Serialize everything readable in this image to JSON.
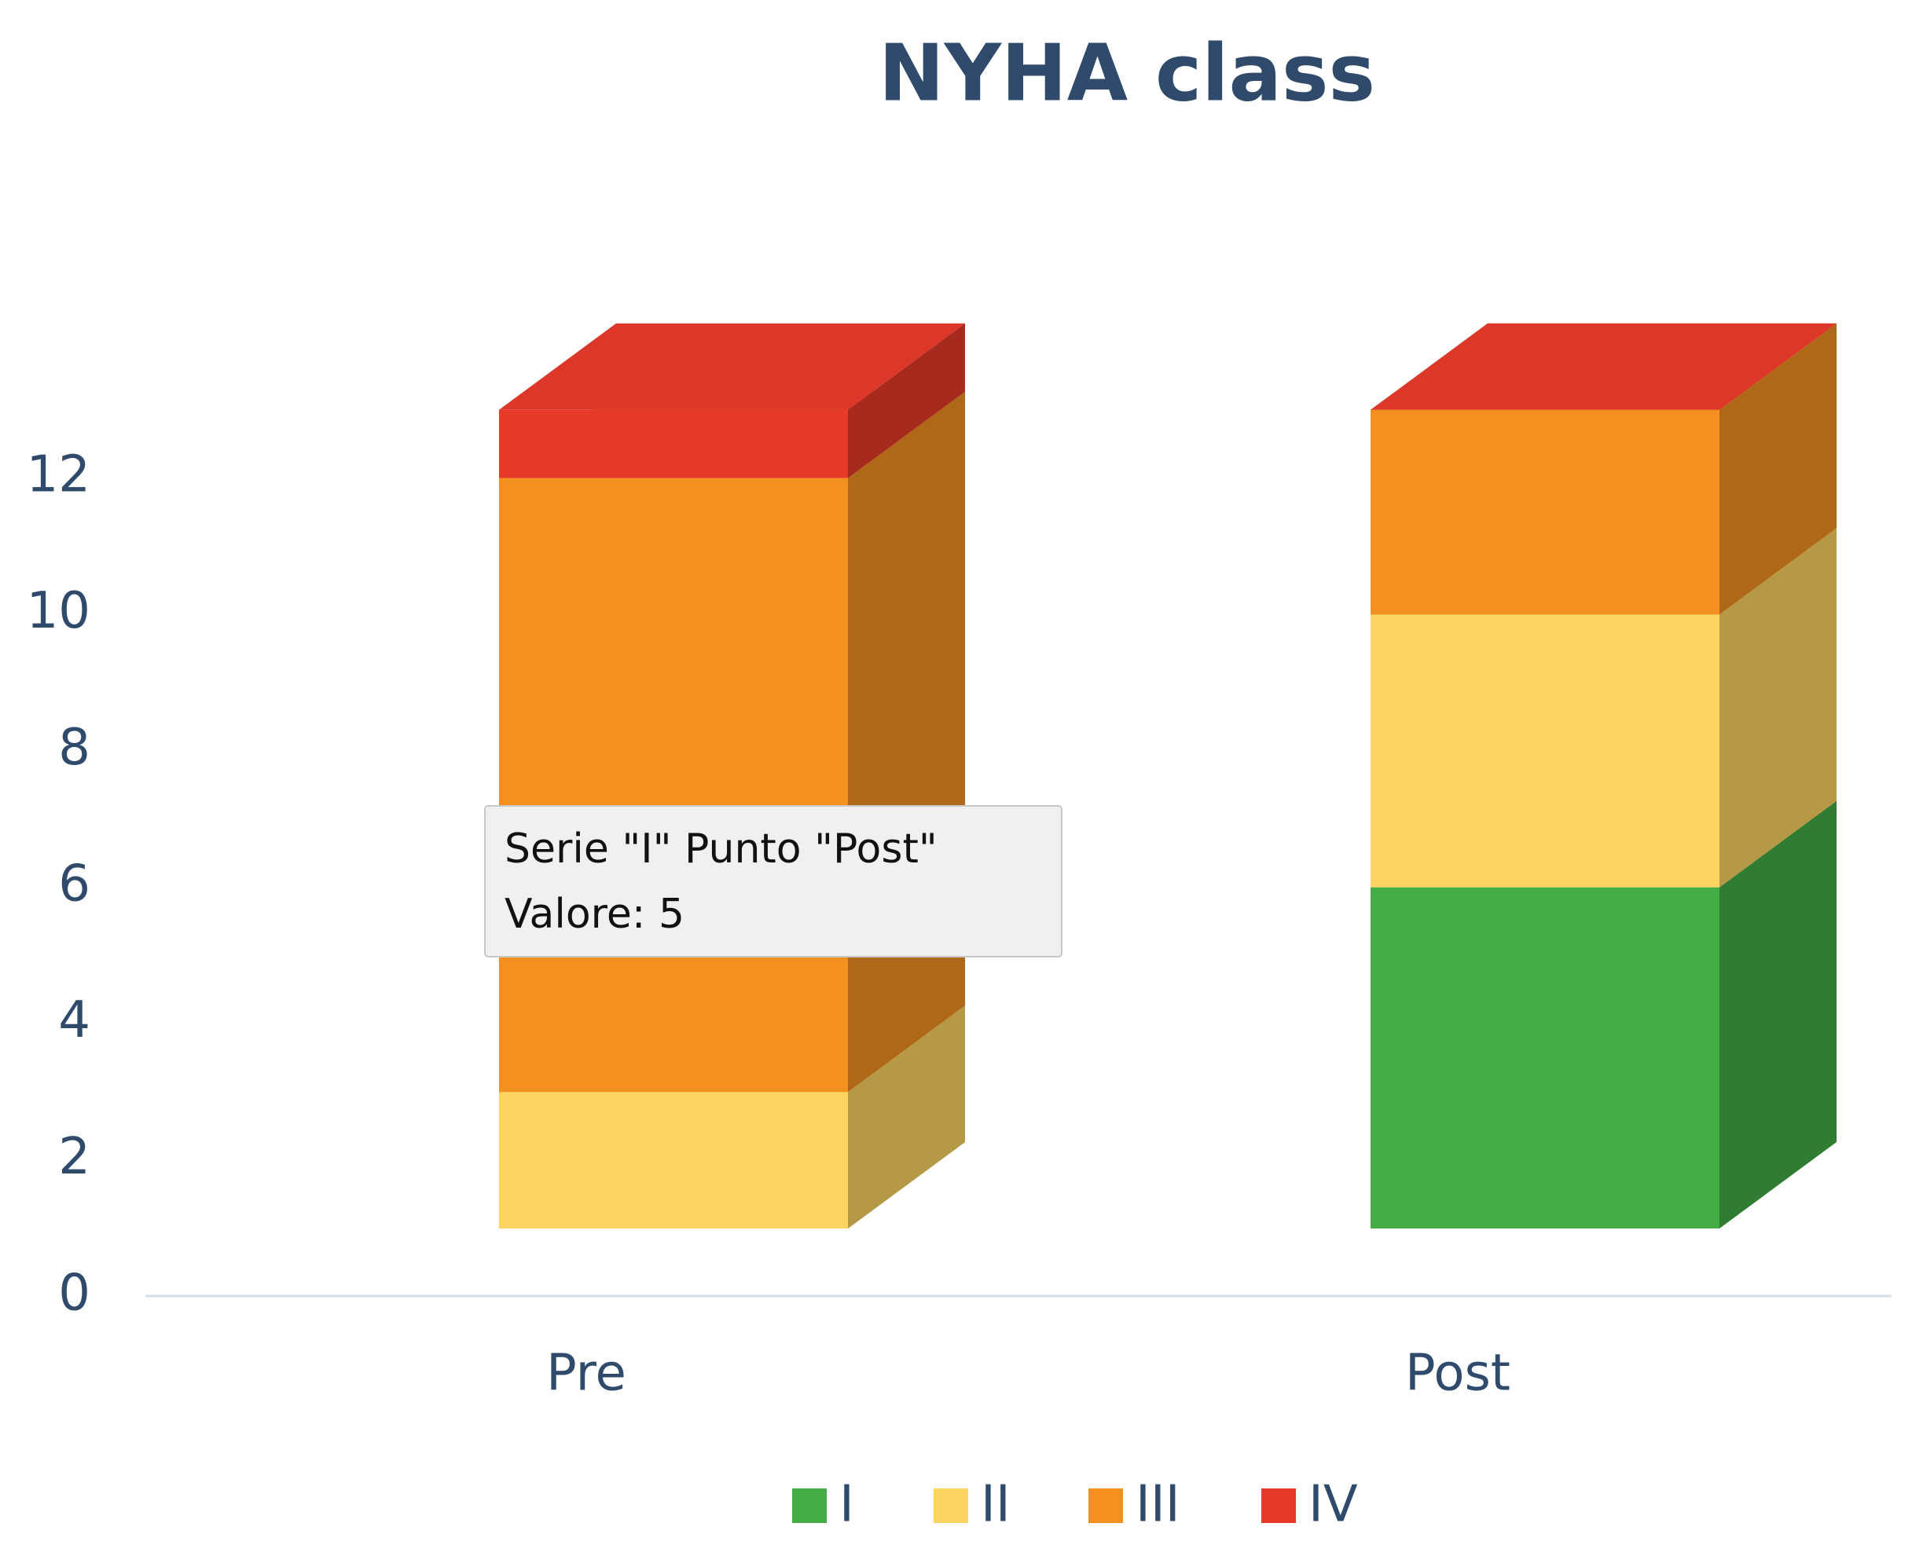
{
  "chart_data": {
    "type": "bar3d-stacked",
    "title": "NYHA class",
    "categories": [
      "Pre",
      "Post"
    ],
    "series": [
      {
        "name": "I",
        "color": "#43ac45",
        "values": [
          0,
          5
        ]
      },
      {
        "name": "II",
        "color": "#fdd462",
        "values": [
          2,
          4
        ]
      },
      {
        "name": "III",
        "color": "#f39020",
        "values": [
          9,
          3
        ]
      },
      {
        "name": "IV",
        "color": "#e83a2a",
        "values": [
          1,
          0
        ]
      }
    ],
    "ylim": [
      0,
      12.7
    ],
    "yticks": [
      0,
      2,
      4,
      6,
      8,
      10,
      12
    ],
    "legend": "bottom"
  },
  "tooltip": {
    "lines": [
      "Serie \"I\" Punto \"Post\"",
      "Valore: 5"
    ]
  }
}
